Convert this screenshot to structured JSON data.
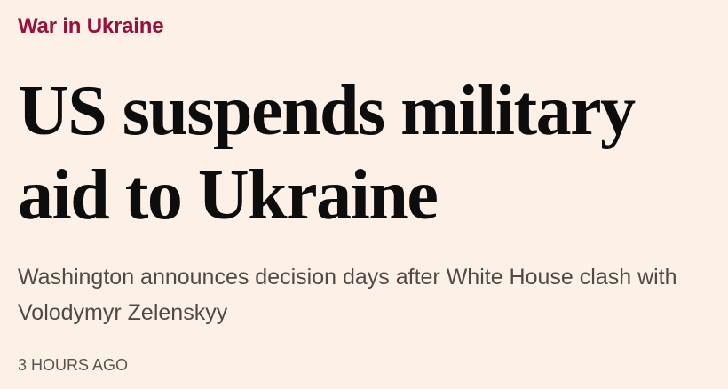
{
  "article": {
    "topic": "War in Ukraine",
    "headline": "US suspends military aid to Ukraine",
    "standfirst": "Washington announces decision days after White House clash with Volodymyr Zelenskyy",
    "timestamp": "3 HOURS AGO"
  }
}
